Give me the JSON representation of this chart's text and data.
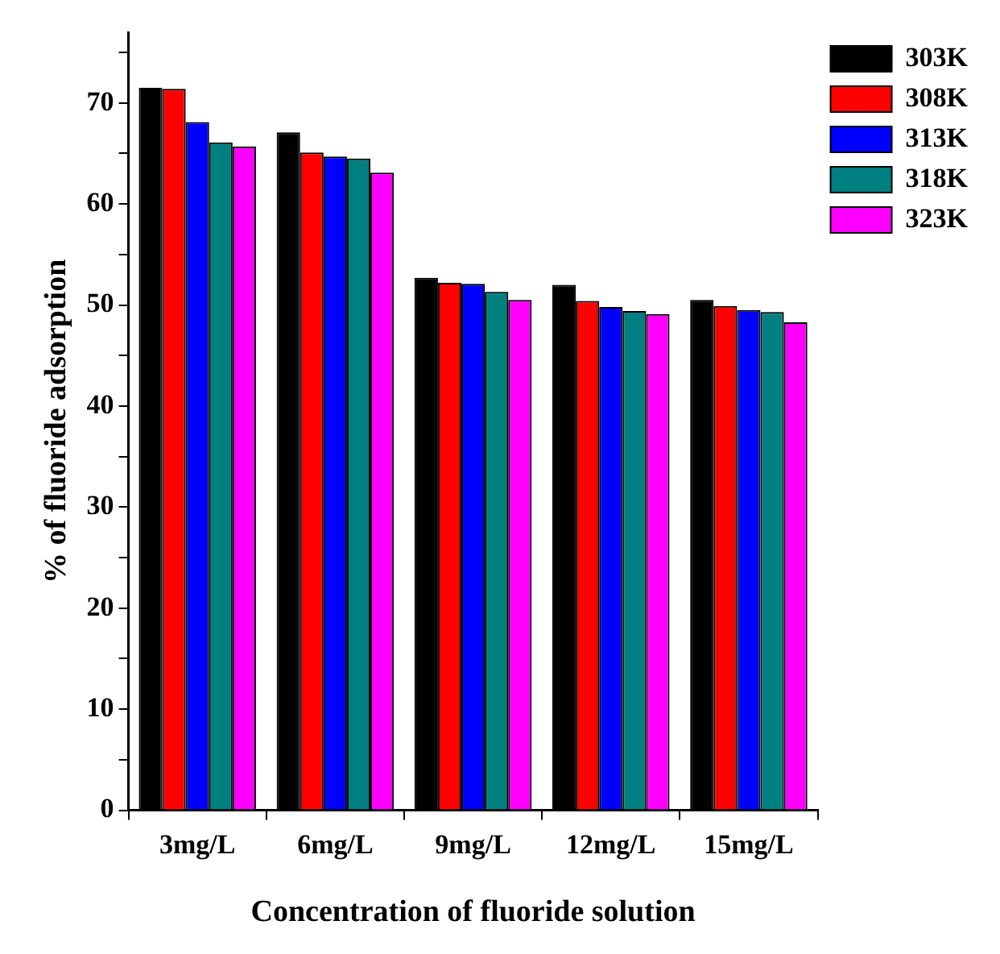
{
  "chart_data": {
    "type": "bar",
    "xlabel": "Concentration of fluoride solution",
    "ylabel": "% of fluoride adsorption",
    "categories": [
      "3mg/L",
      "6mg/L",
      "9mg/L",
      "12mg/L",
      "15mg/L"
    ],
    "series": [
      {
        "name": "303K",
        "color": "#000000",
        "values": [
          71.5,
          67.1,
          52.7,
          52.0,
          50.5
        ]
      },
      {
        "name": "308K",
        "color": "#ff0000",
        "values": [
          71.4,
          65.1,
          52.2,
          50.4,
          49.9
        ]
      },
      {
        "name": "313K",
        "color": "#0000ff",
        "values": [
          68.1,
          64.7,
          52.1,
          49.8,
          49.5
        ]
      },
      {
        "name": "318K",
        "color": "#008080",
        "values": [
          66.1,
          64.5,
          51.3,
          49.4,
          49.3
        ]
      },
      {
        "name": "323K",
        "color": "#ff00ff",
        "values": [
          65.7,
          63.1,
          50.5,
          49.1,
          48.3
        ]
      }
    ],
    "ylim": [
      0,
      77
    ],
    "yticks": [
      0,
      {
        "value": 5,
        "label": null
      },
      10,
      {
        "value": 15,
        "label": null
      },
      20,
      {
        "value": 25,
        "label": null
      },
      30,
      {
        "value": 35,
        "label": null
      },
      40,
      {
        "value": 45,
        "label": null
      },
      50,
      {
        "value": 55,
        "label": null
      },
      60,
      {
        "value": 65,
        "label": null
      },
      70,
      {
        "value": 75,
        "label": null
      }
    ],
    "grid": false,
    "legend": "top right"
  }
}
